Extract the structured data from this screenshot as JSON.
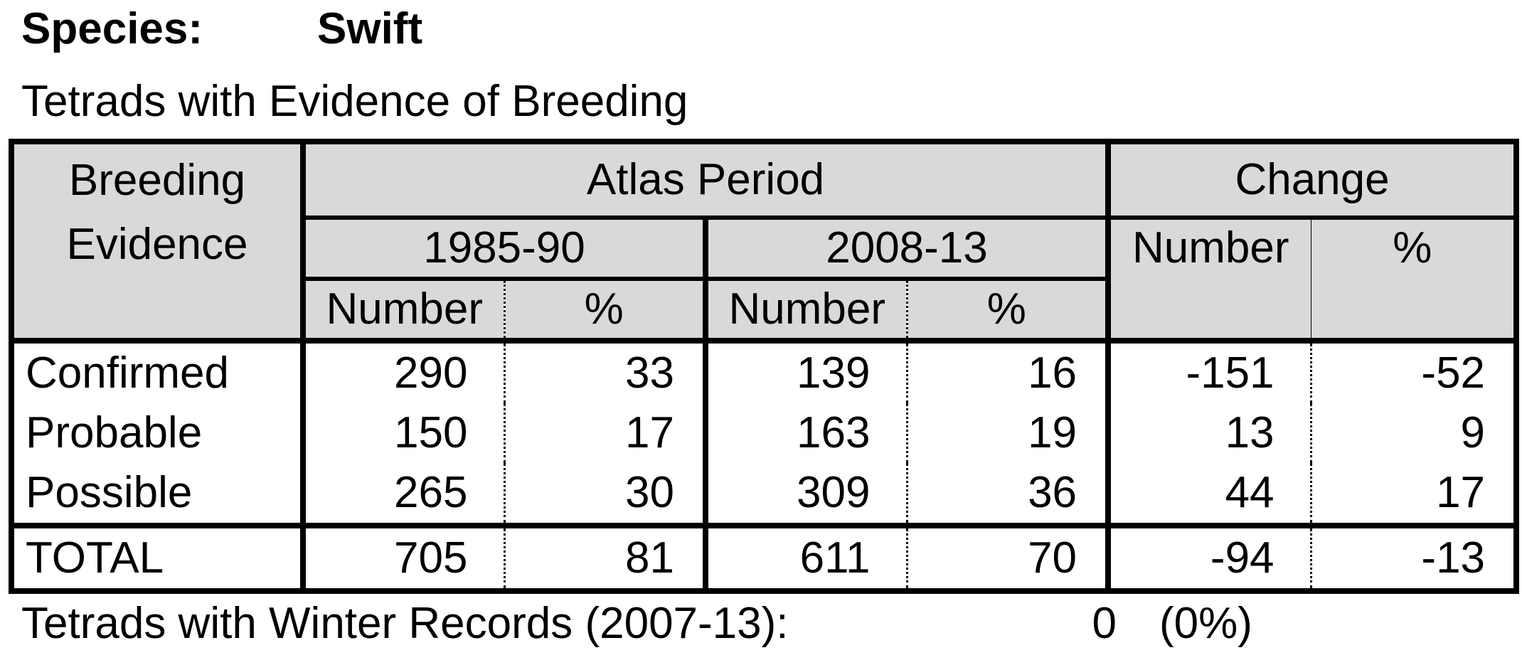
{
  "header": {
    "species_label": "Species:",
    "species_name": "Swift",
    "subtitle": "Tetrads with Evidence of Breeding"
  },
  "table": {
    "col_breeding_line1": "Breeding",
    "col_breeding_line2": "Evidence",
    "group_atlas": "Atlas Period",
    "group_change": "Change",
    "period_a": "1985-90",
    "period_b": "2008-13",
    "sub_number": "Number",
    "sub_percent": "%",
    "rows": [
      {
        "label": "Confirmed",
        "a_num": "290",
        "a_pct": "33",
        "b_num": "139",
        "b_pct": "16",
        "c_num": "-151",
        "c_pct": "-52"
      },
      {
        "label": "Probable",
        "a_num": "150",
        "a_pct": "17",
        "b_num": "163",
        "b_pct": "19",
        "c_num": "13",
        "c_pct": "9"
      },
      {
        "label": "Possible",
        "a_num": "265",
        "a_pct": "30",
        "b_num": "309",
        "b_pct": "36",
        "c_num": "44",
        "c_pct": "17"
      }
    ],
    "total": {
      "label": "TOTAL",
      "a_num": "705",
      "a_pct": "81",
      "b_num": "611",
      "b_pct": "70",
      "c_num": "-94",
      "c_pct": "-13"
    }
  },
  "winter": {
    "label": "Tetrads with Winter Records (2007-13):",
    "count": "0",
    "percent": "(0%)"
  }
}
